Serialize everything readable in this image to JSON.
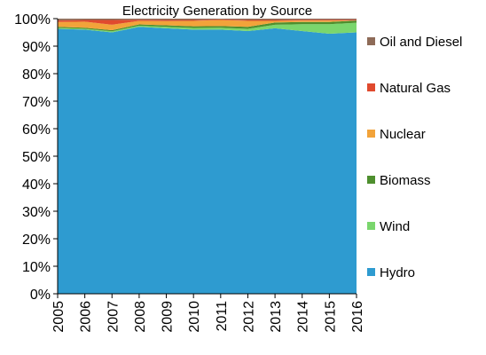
{
  "chart_data": {
    "type": "area",
    "stacked": true,
    "title": "Electricity Generation by Source",
    "xlabel": "",
    "ylabel": "",
    "x": [
      "2005",
      "2006",
      "2007",
      "2008",
      "2009",
      "2010",
      "2011",
      "2012",
      "2013",
      "2014",
      "2015",
      "2016"
    ],
    "yticks": [
      "0%",
      "10%",
      "20%",
      "30%",
      "40%",
      "50%",
      "60%",
      "70%",
      "80%",
      "90%",
      "100%"
    ],
    "ylim": [
      0,
      100
    ],
    "grid": false,
    "legend_position": "right",
    "series": [
      {
        "name": "Hydro",
        "color": "#2E9BD0",
        "values": [
          96.3,
          96.0,
          95.0,
          97.0,
          96.5,
          96.0,
          96.0,
          95.5,
          96.5,
          95.5,
          94.5,
          95.0
        ]
      },
      {
        "name": "Wind",
        "color": "#7AD66D",
        "values": [
          0.3,
          0.3,
          0.4,
          0.4,
          0.5,
          0.6,
          0.7,
          0.8,
          1.3,
          2.5,
          3.5,
          3.5
        ]
      },
      {
        "name": "Biomass",
        "color": "#4E8F2E",
        "values": [
          0.4,
          0.4,
          0.4,
          0.5,
          0.6,
          0.6,
          0.6,
          0.7,
          0.8,
          0.8,
          0.8,
          0.8
        ]
      },
      {
        "name": "Nuclear",
        "color": "#F2A33A",
        "values": [
          1.8,
          2.2,
          2.0,
          1.3,
          1.5,
          2.0,
          2.2,
          2.2,
          0.6,
          0.5,
          0.5,
          0.0
        ]
      },
      {
        "name": "Natural Gas",
        "color": "#E04A2E",
        "values": [
          0.6,
          0.6,
          1.7,
          0.4,
          0.4,
          0.3,
          0.2,
          0.3,
          0.3,
          0.3,
          0.3,
          0.3
        ]
      },
      {
        "name": "Oil and Diesel",
        "color": "#8E6B58",
        "values": [
          0.6,
          0.5,
          0.5,
          0.4,
          0.5,
          0.5,
          0.3,
          0.5,
          0.5,
          0.4,
          0.4,
          0.4
        ]
      }
    ]
  }
}
